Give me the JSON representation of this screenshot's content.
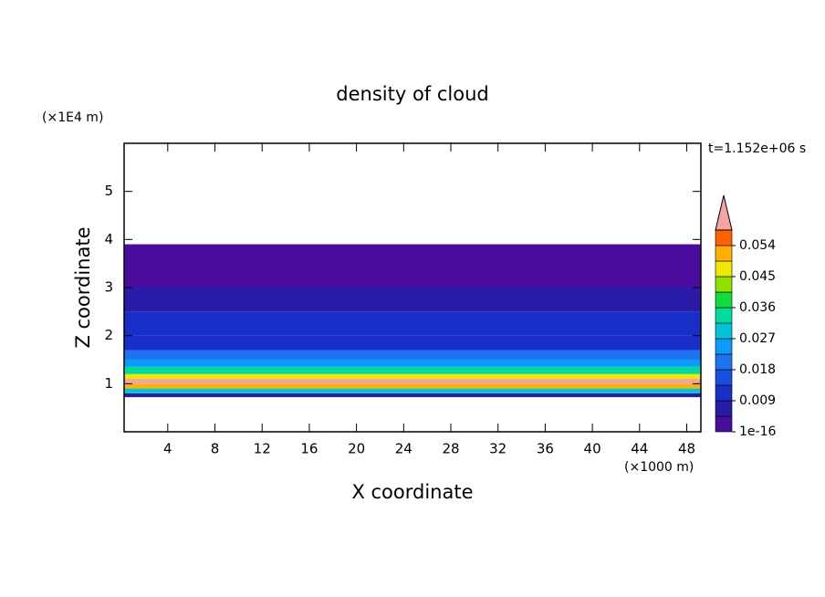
{
  "chart_data": {
    "type": "contour-profile",
    "title": "density of cloud",
    "x_label": "X coordinate",
    "y_label": "Z coordinate",
    "x_unit": "(×1000 m)",
    "y_unit": "(×1E4 m)",
    "time_label": "t=1.152e+06 s",
    "xlim": [
      0.3,
      49.2
    ],
    "xticks": [
      4,
      8,
      12,
      16,
      20,
      24,
      28,
      32,
      36,
      40,
      44,
      48
    ],
    "ylim": [
      0,
      6
    ],
    "yticks": [
      1,
      2,
      3,
      4,
      5
    ],
    "z_edges": [
      0.72,
      0.8,
      0.9,
      1.0,
      1.1,
      1.2,
      1.35,
      1.5,
      1.7,
      2.0,
      2.5,
      3.0,
      3.9
    ],
    "density": [
      0.007,
      0.03,
      0.05,
      0.06,
      0.045,
      0.035,
      0.025,
      0.018,
      0.012,
      0.009,
      0.007,
      0.002
    ],
    "levels": [
      1e-16,
      0.0045,
      0.009,
      0.0135,
      0.018,
      0.0225,
      0.027,
      0.0315,
      0.036,
      0.0405,
      0.045,
      0.0495,
      0.054,
      0.0585
    ],
    "colors": [
      "#4b0c9e",
      "#2a1aa8",
      "#1a2ec8",
      "#1a4ee0",
      "#1e74f0",
      "#0a9cf8",
      "#00c4d8",
      "#00dc9c",
      "#10dc40",
      "#90e000",
      "#f0e800",
      "#ffb000",
      "#ff6000"
    ],
    "over_color": "#f4a4a4",
    "cticks": [
      {
        "value": 1e-16,
        "label": "1e-16"
      },
      0.009,
      0.018,
      0.027,
      0.036,
      0.045,
      0.054
    ]
  }
}
